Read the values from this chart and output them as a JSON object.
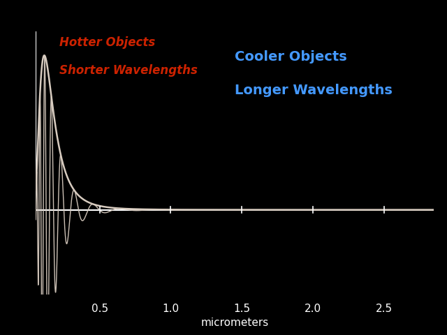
{
  "background_color": "#000000",
  "curve_color": "#d8ccc0",
  "axis_color": "#ffffff",
  "text_hotter_color": "#cc2200",
  "text_cooler_color": "#4499ff",
  "text_hotter_line1": "Hotter Objects",
  "text_hotter_line2": "Shorter Wavelengths",
  "text_cooler_line1": "Cooler Objects",
  "text_cooler_line2": "Longer Wavelengths",
  "xlabel": "micrometers",
  "xticks": [
    0.5,
    1.0,
    1.5,
    2.0,
    2.5
  ],
  "xlim": [
    0.05,
    2.85
  ],
  "ylim": [
    -0.55,
    1.25
  ],
  "figsize": [
    6.4,
    4.8
  ],
  "dpi": 100,
  "envelope_peak": 0.5,
  "wave_freq_scale": 18.0,
  "envelope_linewidth": 1.8,
  "wave_linewidth": 1.0
}
